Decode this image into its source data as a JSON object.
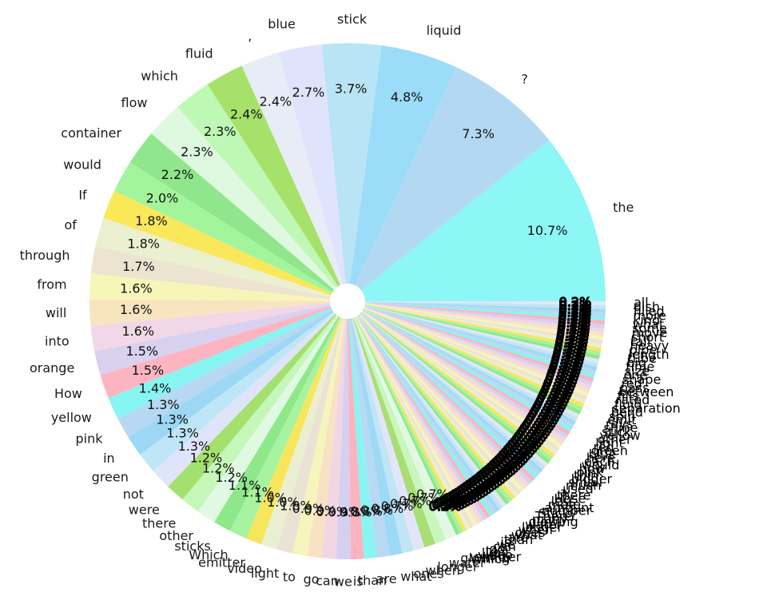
{
  "chart_data": {
    "type": "pie",
    "style": "donut (small center hole), counter-clockwise from 0°, labels outside, percentages inside",
    "slices": [
      {
        "label": "the",
        "value": 10.7,
        "pct_label": "10.7%",
        "color": "#8cf7f5"
      },
      {
        "label": "?",
        "value": 7.3,
        "pct_label": "7.3%",
        "color": "#b3d9f2"
      },
      {
        "label": "liquid",
        "value": 4.8,
        "pct_label": "4.8%",
        "color": "#9bdcf8"
      },
      {
        "label": "stick",
        "value": 3.7,
        "pct_label": "3.7%",
        "color": "#b8e4f5"
      },
      {
        "label": "blue",
        "value": 2.7,
        "pct_label": "2.7%",
        "color": "#dfe3fb"
      },
      {
        "label": ",",
        "value": 2.4,
        "pct_label": "2.4%",
        "color": "#e8ecf6"
      },
      {
        "label": "fluid",
        "value": 2.4,
        "pct_label": "2.4%",
        "color": "#a6e26a"
      },
      {
        "label": "which",
        "value": 2.3,
        "pct_label": "2.3%",
        "color": "#bff7b5"
      },
      {
        "label": "flow",
        "value": 2.3,
        "pct_label": "2.3%",
        "color": "#dff9e0"
      },
      {
        "label": "container",
        "value": 2.2,
        "pct_label": "2.2%",
        "color": "#90e68c"
      },
      {
        "label": "would",
        "value": 2.0,
        "pct_label": "2.0%",
        "color": "#a3f59b"
      },
      {
        "label": "If",
        "value": 1.8,
        "pct_label": "1.8%",
        "color": "#f8e85a"
      },
      {
        "label": "of",
        "value": 1.8,
        "pct_label": "1.8%",
        "color": "#ebf0d0"
      },
      {
        "label": "through",
        "value": 1.7,
        "pct_label": "1.7%",
        "color": "#ece4d1"
      },
      {
        "label": "from",
        "value": 1.6,
        "pct_label": "1.6%",
        "color": "#f6f6b8"
      },
      {
        "label": "will",
        "value": 1.6,
        "pct_label": "1.6%",
        "color": "#f9e4c0"
      },
      {
        "label": "into",
        "value": 1.6,
        "pct_label": "1.6%",
        "color": "#f2d8e6"
      },
      {
        "label": "orange",
        "value": 1.5,
        "pct_label": "1.5%",
        "color": "#d8d1f0"
      },
      {
        "label": "How",
        "value": 1.5,
        "pct_label": "1.5%",
        "color": "#fcb5c0"
      },
      {
        "label": "yellow",
        "value": 1.4,
        "pct_label": "1.4%",
        "color": "#87f5f2"
      },
      {
        "label": "pink",
        "value": 1.3,
        "pct_label": "1.3%",
        "color": "#b6d8f2"
      },
      {
        "label": "in",
        "value": 1.3,
        "pct_label": "1.3%",
        "color": "#9cd8f6"
      },
      {
        "label": "green",
        "value": 1.3,
        "pct_label": "1.3%",
        "color": "#bfe6f6"
      },
      {
        "label": "not",
        "value": 1.3,
        "pct_label": "1.3%",
        "color": "#e0e4fa"
      },
      {
        "label": "were",
        "value": 1.2,
        "pct_label": "1.2%",
        "color": "#a4e06e"
      },
      {
        "label": "there",
        "value": 1.2,
        "pct_label": "1.2%",
        "color": "#c4f7b8"
      },
      {
        "label": "other",
        "value": 1.2,
        "pct_label": "1.2%",
        "color": "#e0f9e2"
      },
      {
        "label": "sticks",
        "value": 1.1,
        "pct_label": "1.1%",
        "color": "#8ee88a"
      },
      {
        "label": "Which",
        "value": 1.1,
        "pct_label": "1.1%",
        "color": "#a8f3a0"
      },
      {
        "label": "emitter",
        "value": 1.0,
        "pct_label": "1.0%",
        "color": "#f7e65c"
      },
      {
        "label": "video",
        "value": 1.0,
        "pct_label": "1.0%",
        "color": "#ebefd2"
      },
      {
        "label": "light",
        "value": 1.0,
        "pct_label": "1.0%",
        "color": "#eae3d3"
      },
      {
        "label": "to",
        "value": 0.9,
        "pct_label": "0.9%",
        "color": "#f5f5bc"
      },
      {
        "label": "go",
        "value": 0.9,
        "pct_label": "0.9%",
        "color": "#f8e2c4"
      },
      {
        "label": "can",
        "value": 0.9,
        "pct_label": "0.9%",
        "color": "#f1d6e4"
      },
      {
        "label": "we",
        "value": 0.9,
        "pct_label": "0.9%",
        "color": "#d6cff0"
      },
      {
        "label": "is",
        "value": 0.8,
        "pct_label": "0.8%",
        "color": "#fbb3bf"
      },
      {
        "label": "than",
        "value": 0.8,
        "pct_label": "0.8%",
        "color": "#8af4f2"
      },
      {
        "label": "are",
        "value": 0.8,
        "pct_label": "0.8%",
        "color": "#b8d9f2"
      },
      {
        "label": "what",
        "value": 0.8,
        "pct_label": "0.8%",
        "color": "#9ed9f6"
      },
      {
        "label": "ones",
        "value": 0.7,
        "pct_label": "0.7%",
        "color": "#c0e5f5"
      },
      {
        "label": "when",
        "value": 0.7,
        "pct_label": "0.7%",
        "color": "#e2e5f9"
      },
      {
        "label": "longer",
        "value": 0.7,
        "pct_label": "0.7%",
        "color": "#a9de75"
      },
      {
        "label": "water",
        "value": 0.7,
        "pct_label": "0.7%",
        "color": "#c8f6bd"
      },
      {
        "label": "glowing",
        "value": 0.7,
        "pct_label": "0.7%",
        "color": "#e2f8e4"
      }
    ],
    "tail": {
      "slice_count": 75,
      "total_pct": 18.0,
      "value_each": 0.24,
      "note": "many small slices with heavily overlapping black labels and percentage text",
      "colors": [
        "#8ee889",
        "#a6f29e",
        "#f6e760",
        "#eceed3",
        "#ebe3d4",
        "#f5f4bf",
        "#f7e2c6",
        "#f0d7e4",
        "#d7d0ef",
        "#fab4bf",
        "#8bf3f1",
        "#b9d9f1",
        "#a0d9f5",
        "#c2e5f4",
        "#e3e6f8"
      ],
      "visible_labels": [
        "Which",
        "emitter",
        "video",
        "light",
        "to",
        "go",
        "can",
        "we",
        "is",
        "than",
        "are",
        "what",
        "ones",
        "when",
        "longer",
        "water",
        "glowing",
        "many",
        "There",
        "Sticky",
        "number",
        "amount",
        "more",
        "less",
        "Hose",
        "there",
        "a",
        "used",
        "much",
        "small",
        "bigger",
        "thin",
        "pink",
        "how",
        "would",
        "each",
        "here",
        "blue",
        "green",
        "red",
        "light",
        "other",
        "yellow",
        "stick",
        "shine",
        "rays",
        "emit",
        "spin",
        "bend",
        "separation",
        "fluid",
        "rated",
        "fills",
        "between",
        "pass",
        "red",
        "shape",
        "one",
        "size",
        "time",
        "big",
        "tube",
        "length",
        "pipe",
        "heavy",
        "tall",
        "short",
        "move",
        "some",
        "what",
        "kind",
        "more",
        "filled",
        "dish",
        "all"
      ]
    }
  }
}
